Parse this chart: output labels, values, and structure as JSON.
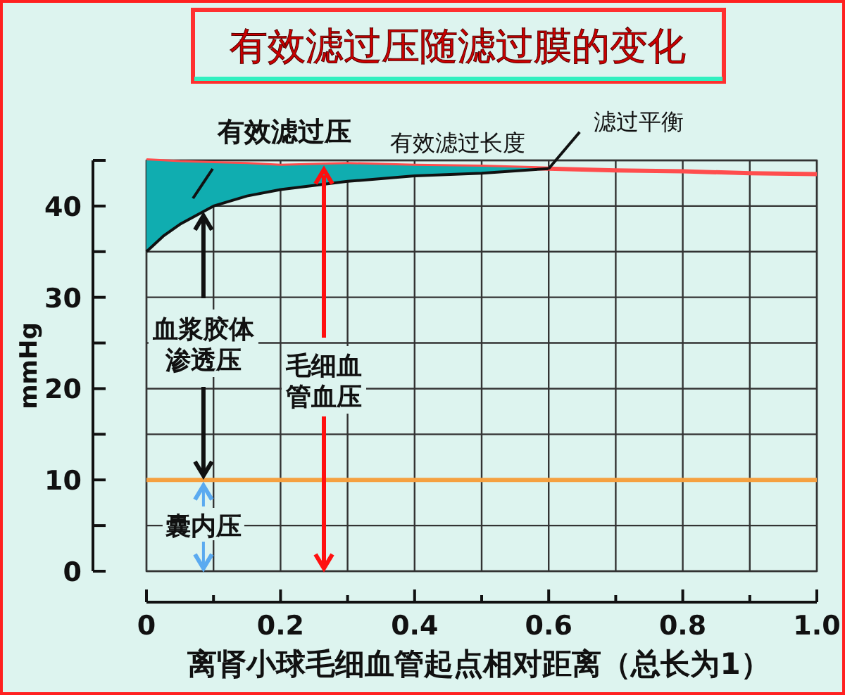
{
  "chart_data": {
    "type": "line",
    "title": "有效滤过压随滤过膜的变化",
    "xlabel": "离肾小球毛细血管起点相对距离（总长为1）",
    "ylabel": "mmHg",
    "x": [
      0,
      0.025,
      0.05,
      0.1,
      0.15,
      0.2,
      0.3,
      0.4,
      0.5,
      0.6,
      0.7,
      0.8,
      0.9,
      1.0
    ],
    "series": [
      {
        "color": "#ff4d4d",
        "values": [
          45,
          44.9,
          44.8,
          44.7,
          44.6,
          44.4,
          44.6,
          44.4,
          44.3,
          44.1,
          43.9,
          43.8,
          43.6,
          43.5
        ]
      },
      {
        "color": "#111111",
        "values": [
          35,
          36.7,
          38,
          40,
          41.1,
          41.8,
          42.7,
          43.3,
          43.6,
          44.1,
          null,
          null,
          null,
          null
        ],
        "lower": [
          35,
          36.7,
          38,
          40,
          41.1,
          41.8,
          42.7,
          43.3,
          43.6,
          44.1,
          null,
          null,
          null,
          null
        ],
        "upper": [
          45,
          44.9,
          44.8,
          44.7,
          44.6,
          44.4,
          44.6,
          44.4,
          44.3,
          44.1,
          null,
          null,
          null,
          null
        ]
      },
      {
        "color": "#f5a040",
        "values": [
          10,
          10,
          10,
          10,
          10,
          10,
          10,
          10,
          10,
          10,
          10,
          10,
          10,
          10
        ]
      }
    ],
    "annotations": [
      "有效滤过压",
      {
        "text": "有效滤过长度"
      },
      {
        "text": "滤过平衡",
        "x": 0.6,
        "y": 44.1
      },
      {
        "text": "血浆胶体渗透压",
        "x": 0.085,
        "y": 39.4
      },
      "毛细血管血压",
      "囊内压"
    ],
    "xlim": [
      0,
      1.0
    ],
    "ylim": [
      0,
      45
    ],
    "xticks": [
      0,
      {
        "value": 0.1,
        "label": null
      },
      0.2,
      {
        "value": 0.3,
        "label": null
      },
      0.4,
      {
        "value": 0.5,
        "label": null
      },
      0.6,
      {
        "value": 0.7,
        "label": null
      },
      0.8,
      {
        "value": 0.9,
        "label": null
      },
      {
        "value": 1.0,
        "label": "1.0"
      }
    ],
    "yticks": [
      0,
      {
        "value": 5,
        "label": null
      },
      10,
      {
        "value": 15,
        "label": null
      },
      20,
      {
        "value": 25,
        "label": null
      },
      30,
      {
        "value": 35,
        "label": null
      },
      40,
      {
        "value": 45,
        "label": null
      }
    ],
    "grid": true,
    "marker": "none",
    "line_style": "solid"
  }
}
